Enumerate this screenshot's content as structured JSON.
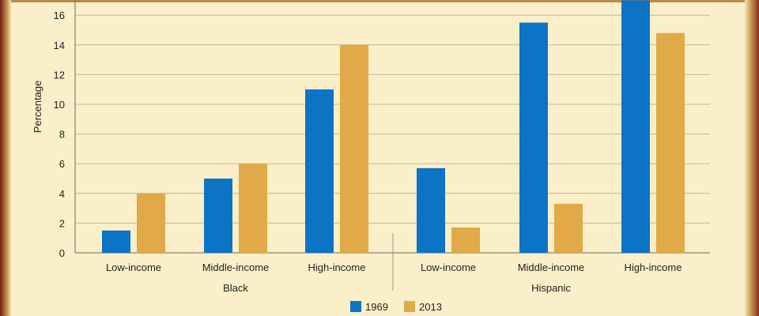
{
  "chart_data": {
    "type": "bar",
    "ylabel": "Percentage",
    "ylim": [
      0,
      17
    ],
    "yticks": [
      0,
      2,
      4,
      6,
      8,
      10,
      12,
      14,
      16
    ],
    "grid": true,
    "groups": [
      {
        "label": "Black",
        "categories": [
          "Low-income",
          "Middle-income",
          "High-income"
        ]
      },
      {
        "label": "Hispanic",
        "categories": [
          "Low-income",
          "Middle-income",
          "High-income"
        ]
      }
    ],
    "series": [
      {
        "name": "1969",
        "color": "#0b74c4",
        "values": [
          1.5,
          5.0,
          11.0,
          5.7,
          15.5,
          17.0
        ]
      },
      {
        "name": "2013",
        "color": "#e1a947",
        "values": [
          4.0,
          6.0,
          14.0,
          1.7,
          3.3,
          14.8
        ]
      }
    ],
    "legend_position": "bottom-center"
  }
}
